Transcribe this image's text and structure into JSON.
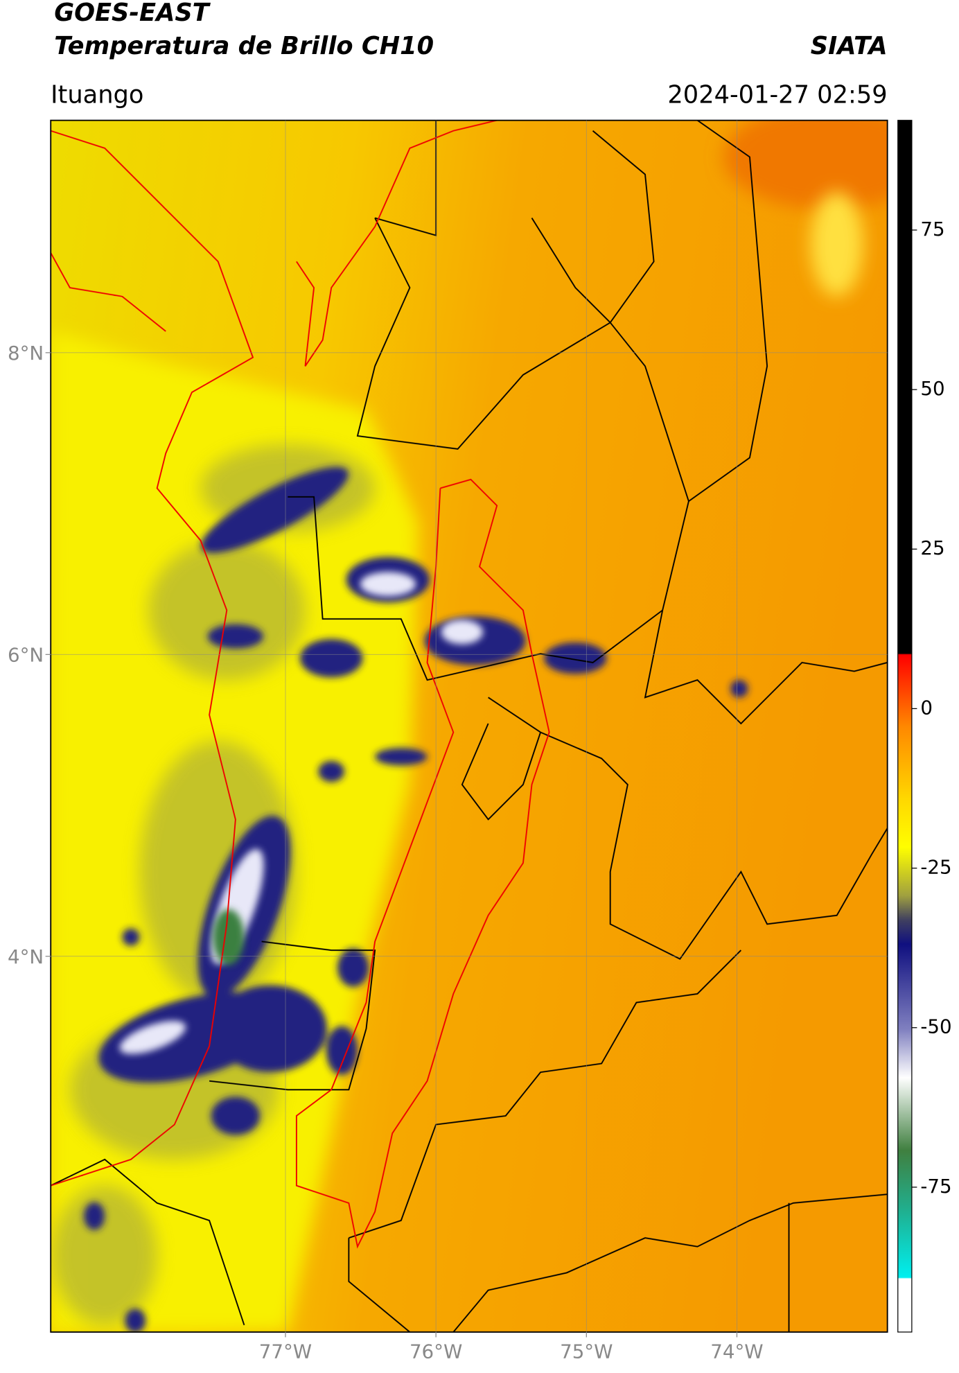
{
  "header": {
    "title": "GOES-EAST",
    "subtitle": "Temperatura de Brillo CH10",
    "source": "SIATA",
    "location": "Ituango",
    "datetime": "2024-01-27 02:59"
  },
  "map": {
    "xlim": [
      -78.56,
      -73.0
    ],
    "ylim": [
      1.51,
      9.54
    ],
    "xticks": [
      {
        "value": -77,
        "label": "77°W"
      },
      {
        "value": -76,
        "label": "76°W"
      },
      {
        "value": -75,
        "label": "75°W"
      },
      {
        "value": -74,
        "label": "74°W"
      }
    ],
    "yticks": [
      {
        "value": 8,
        "label": "8°N"
      },
      {
        "value": 6,
        "label": "6°N"
      },
      {
        "value": 4,
        "label": "4°N"
      }
    ],
    "grid": true
  },
  "colorbar": {
    "lim": [
      -97.7,
      92.2
    ],
    "ticks": [
      75,
      50,
      25,
      0,
      -25,
      -50,
      -75
    ]
  }
}
